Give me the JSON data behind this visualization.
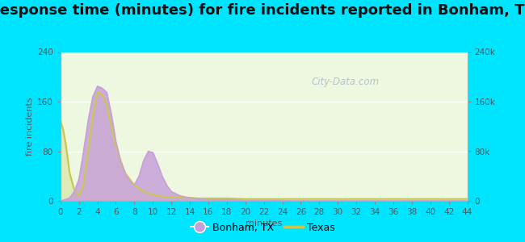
{
  "title": "Response time (minutes) for fire incidents reported in Bonham, TX",
  "xlabel": "minutes",
  "ylabel_left": "fire incidents",
  "xlim": [
    0,
    44
  ],
  "ylim_left": [
    0,
    240
  ],
  "ylim_right": [
    0,
    240000
  ],
  "yticks_left": [
    0,
    80,
    160,
    240
  ],
  "yticks_right": [
    0,
    80000,
    160000,
    240000
  ],
  "ytick_labels_right": [
    "0",
    "80k",
    "160k",
    "240k"
  ],
  "xticks": [
    0,
    2,
    4,
    6,
    8,
    10,
    12,
    14,
    16,
    18,
    20,
    22,
    24,
    26,
    28,
    30,
    32,
    34,
    36,
    38,
    40,
    42,
    44
  ],
  "bg_outer": "#00e5ff",
  "bg_plot": "#eef8e0",
  "bonham_fill_color": "#c8a0d8",
  "bonham_line_color": "#c8a0d8",
  "texas_line_color": "#c8c850",
  "texas_fill_color": "#deeab8",
  "watermark": "City-Data.com",
  "legend_bonham": "Bonham, TX",
  "legend_texas": "Texas",
  "bonham_x": [
    0,
    0.5,
    1,
    1.5,
    2,
    2.5,
    3,
    3.5,
    4,
    4.5,
    5,
    5.5,
    6,
    6.5,
    7,
    7.5,
    8,
    8.5,
    9,
    9.5,
    10,
    10.5,
    11,
    11.5,
    12,
    13,
    14,
    15,
    16,
    17,
    18,
    19,
    20,
    21,
    22,
    23,
    24,
    25,
    26,
    27,
    28,
    30,
    32,
    34,
    36,
    38,
    40,
    42,
    44
  ],
  "bonham_y": [
    0,
    2,
    5,
    15,
    35,
    80,
    130,
    168,
    185,
    182,
    175,
    140,
    95,
    65,
    45,
    32,
    26,
    40,
    65,
    80,
    78,
    60,
    40,
    25,
    15,
    8,
    5,
    3,
    2,
    2,
    2,
    2,
    1,
    1,
    1,
    1,
    1,
    0,
    0,
    0,
    0,
    0,
    0,
    0,
    0,
    0,
    0,
    0,
    0
  ],
  "texas_x": [
    0,
    0.3,
    0.6,
    1,
    1.5,
    2,
    2.5,
    3,
    3.5,
    4,
    4.5,
    5,
    5.5,
    6,
    6.5,
    7,
    8,
    9,
    10,
    11,
    12,
    13,
    14,
    15,
    16,
    18,
    20,
    22,
    24,
    26,
    28,
    30,
    32,
    34,
    36,
    38,
    40,
    42,
    44
  ],
  "texas_y": [
    130,
    115,
    90,
    45,
    18,
    8,
    25,
    80,
    135,
    175,
    172,
    155,
    120,
    90,
    65,
    45,
    25,
    15,
    10,
    7,
    6,
    5,
    5,
    4,
    4,
    4,
    3,
    3,
    3,
    3,
    3,
    3,
    3,
    3,
    3,
    3,
    3,
    3,
    3
  ],
  "title_fontsize": 13,
  "label_fontsize": 8,
  "tick_fontsize": 7.5
}
